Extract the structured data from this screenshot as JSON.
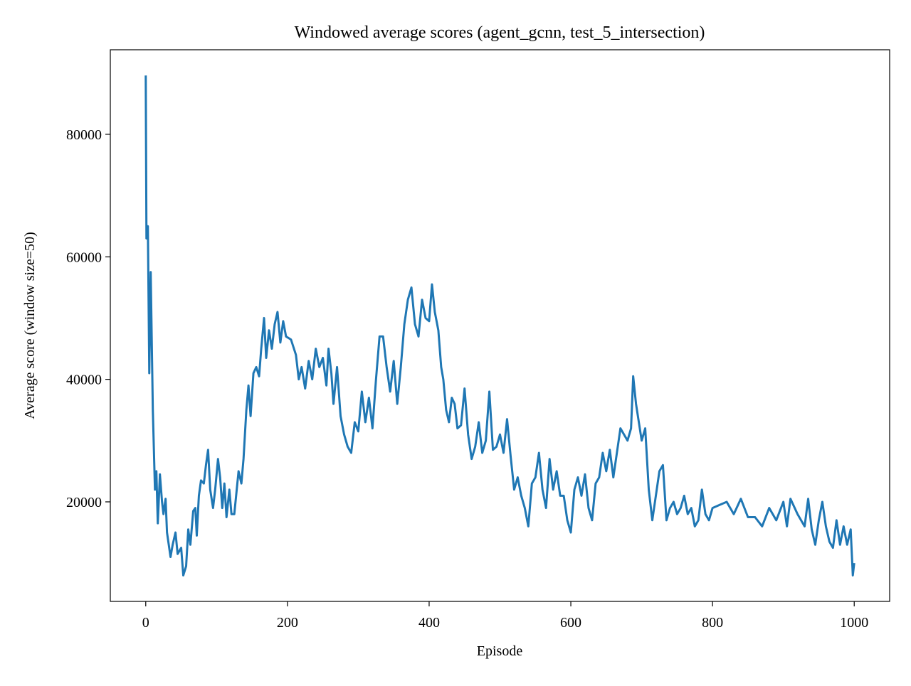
{
  "chart_data": {
    "type": "line",
    "title": "Windowed average scores (agent_gcnn, test_5_intersection)",
    "x_label": "Episode",
    "y_label": "Average score (window size=50)",
    "xlim": [
      -50,
      1050
    ],
    "xticks": [
      0,
      200,
      400,
      600,
      800,
      1000
    ],
    "ylim": [
      3750,
      93800
    ],
    "yticks": [
      20000,
      40000,
      60000,
      80000
    ],
    "grid": false,
    "x": [
      0,
      1,
      3,
      5,
      7,
      10,
      13,
      15,
      17,
      20,
      23,
      25,
      28,
      30,
      35,
      38,
      42,
      45,
      50,
      53,
      57,
      60,
      63,
      67,
      70,
      72,
      75,
      78,
      82,
      85,
      88,
      91,
      95,
      98,
      102,
      105,
      108,
      111,
      114,
      118,
      121,
      125,
      128,
      131,
      135,
      138,
      142,
      145,
      148,
      152,
      156,
      160,
      163,
      167,
      170,
      174,
      178,
      182,
      186,
      190,
      194,
      198,
      205,
      212,
      216,
      220,
      225,
      230,
      235,
      240,
      245,
      250,
      255,
      258,
      262,
      265,
      270,
      275,
      280,
      285,
      290,
      295,
      300,
      305,
      310,
      315,
      320,
      325,
      330,
      335,
      340,
      345,
      350,
      355,
      360,
      365,
      370,
      375,
      380,
      385,
      390,
      395,
      400,
      404,
      408,
      413,
      417,
      420,
      424,
      428,
      432,
      436,
      440,
      445,
      450,
      455,
      460,
      465,
      470,
      475,
      480,
      485,
      490,
      495,
      500,
      505,
      510,
      515,
      520,
      525,
      530,
      535,
      540,
      545,
      550,
      555,
      560,
      565,
      570,
      575,
      580,
      585,
      590,
      595,
      600,
      605,
      610,
      615,
      620,
      625,
      630,
      635,
      640,
      645,
      650,
      655,
      660,
      665,
      670,
      675,
      680,
      685,
      688,
      692,
      696,
      700,
      705,
      710,
      715,
      720,
      725,
      730,
      735,
      740,
      745,
      750,
      755,
      760,
      765,
      770,
      775,
      780,
      785,
      790,
      795,
      800,
      810,
      820,
      830,
      840,
      850,
      860,
      870,
      880,
      890,
      900,
      905,
      910,
      920,
      930,
      935,
      940,
      945,
      950,
      955,
      960,
      965,
      970,
      975,
      980,
      985,
      990,
      995,
      998,
      1000
    ],
    "series": [
      {
        "color": "#1f77b4",
        "values": [
          89600,
          63000,
          65000,
          41000,
          57500,
          35000,
          22000,
          25000,
          16500,
          24500,
          20000,
          18000,
          20500,
          15000,
          11000,
          13000,
          15000,
          11500,
          12500,
          8000,
          9500,
          15500,
          13000,
          18500,
          19000,
          14500,
          21000,
          23500,
          23000,
          26000,
          28500,
          22000,
          19000,
          22000,
          27000,
          24000,
          19000,
          23000,
          17500,
          22000,
          18000,
          18000,
          21500,
          25000,
          23000,
          27000,
          35000,
          39000,
          34000,
          41000,
          42000,
          40500,
          45000,
          50000,
          43500,
          48000,
          45000,
          49000,
          51000,
          46000,
          49500,
          47000,
          46500,
          44000,
          40000,
          42000,
          38500,
          43000,
          40000,
          45000,
          42000,
          43500,
          39000,
          45000,
          41000,
          36000,
          42000,
          34000,
          31000,
          29000,
          28000,
          33000,
          31500,
          38000,
          33000,
          37000,
          32000,
          40000,
          47000,
          47000,
          42000,
          38000,
          43000,
          36000,
          42000,
          49000,
          53000,
          55000,
          49000,
          47000,
          53000,
          50000,
          49500,
          55500,
          51000,
          48000,
          42000,
          40000,
          35000,
          33000,
          37000,
          36000,
          32000,
          32500,
          38500,
          31000,
          27000,
          29000,
          33000,
          28000,
          30000,
          38000,
          28500,
          29000,
          31000,
          28000,
          33500,
          27500,
          22000,
          24000,
          21000,
          19000,
          16000,
          23000,
          24000,
          28000,
          22000,
          19000,
          27000,
          22000,
          25000,
          21000,
          21000,
          17000,
          15000,
          22000,
          24000,
          21000,
          24500,
          19000,
          17000,
          23000,
          24000,
          28000,
          25000,
          28500,
          24000,
          28000,
          32000,
          31000,
          30000,
          32000,
          40500,
          36000,
          33000,
          30000,
          32000,
          22000,
          17000,
          21000,
          25000,
          26000,
          17000,
          19000,
          20000,
          18000,
          19000,
          21000,
          18000,
          19000,
          16000,
          17000,
          22000,
          18000,
          17000,
          19000,
          19500,
          20000,
          18000,
          20500,
          17500,
          17500,
          16000,
          19000,
          17000,
          20000,
          16000,
          20500,
          18000,
          16000,
          20500,
          15500,
          13000,
          17000,
          20000,
          16000,
          13500,
          12500,
          17000,
          13000,
          16000,
          13000,
          15500,
          8000,
          10000
        ]
      }
    ]
  }
}
